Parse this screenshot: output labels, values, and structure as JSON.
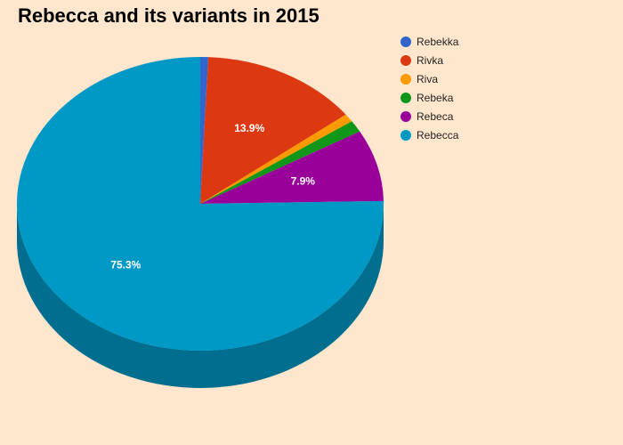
{
  "chart_data": {
    "type": "pie",
    "title": "Rebecca and its variants in 2015",
    "three_d": true,
    "legend_position": "top-right",
    "slices": [
      {
        "name": "Rebekka",
        "value": 0.7,
        "color": "#3366cc",
        "label": ""
      },
      {
        "name": "Rivka",
        "value": 13.9,
        "color": "#dc3912",
        "label": "13.9%"
      },
      {
        "name": "Riva",
        "value": 0.9,
        "color": "#ff9900",
        "label": ""
      },
      {
        "name": "Rebeka",
        "value": 1.3,
        "color": "#109618",
        "label": ""
      },
      {
        "name": "Rebeca",
        "value": 7.9,
        "color": "#990099",
        "label": "7.9%"
      },
      {
        "name": "Rebecca",
        "value": 75.3,
        "color": "#0099c6",
        "label": "75.3%"
      }
    ]
  }
}
